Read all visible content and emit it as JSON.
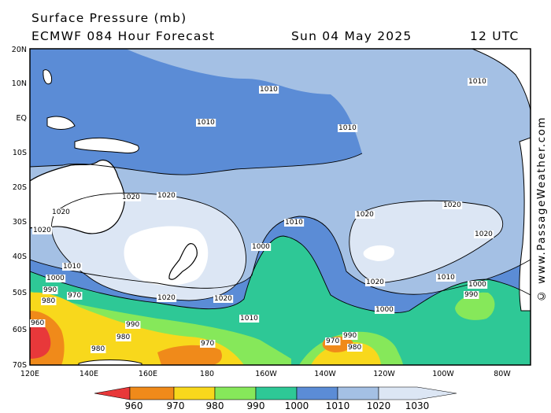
{
  "header": {
    "title": "Surface Pressure (mb)",
    "model": "ECMWF 084 Hour Forecast",
    "date": "Sun 04 May 2025",
    "time": "12 UTC"
  },
  "watermark": "© www.PassageWeather.com",
  "axes": {
    "lat_labels": [
      "20N",
      "10N",
      "EQ",
      "10S",
      "20S",
      "30S",
      "40S",
      "50S",
      "60S",
      "70S"
    ],
    "lon_labels": [
      "120E",
      "140E",
      "160E",
      "180",
      "160W",
      "140W",
      "120W",
      "100W",
      "80W"
    ]
  },
  "isobar_labels": {
    "values": [
      "1010",
      "1020",
      "1000",
      "990",
      "980",
      "970",
      "960"
    ]
  },
  "legend": {
    "labels": [
      "960",
      "970",
      "980",
      "990",
      "1000",
      "1010",
      "1020",
      "1030"
    ],
    "colors": [
      "#e8383a",
      "#f08a1a",
      "#f8d81c",
      "#86e85a",
      "#2ec896",
      "#5b8cd6",
      "#a4c0e4",
      "#dce6f4"
    ]
  },
  "colors": {
    "land": "#ffffff",
    "band_1000_1010": "#2ec896",
    "band_1010_1020": "#5b8cd6",
    "band_1020_1030": "#a4c0e4",
    "band_above_1030": "#dce6f4"
  }
}
